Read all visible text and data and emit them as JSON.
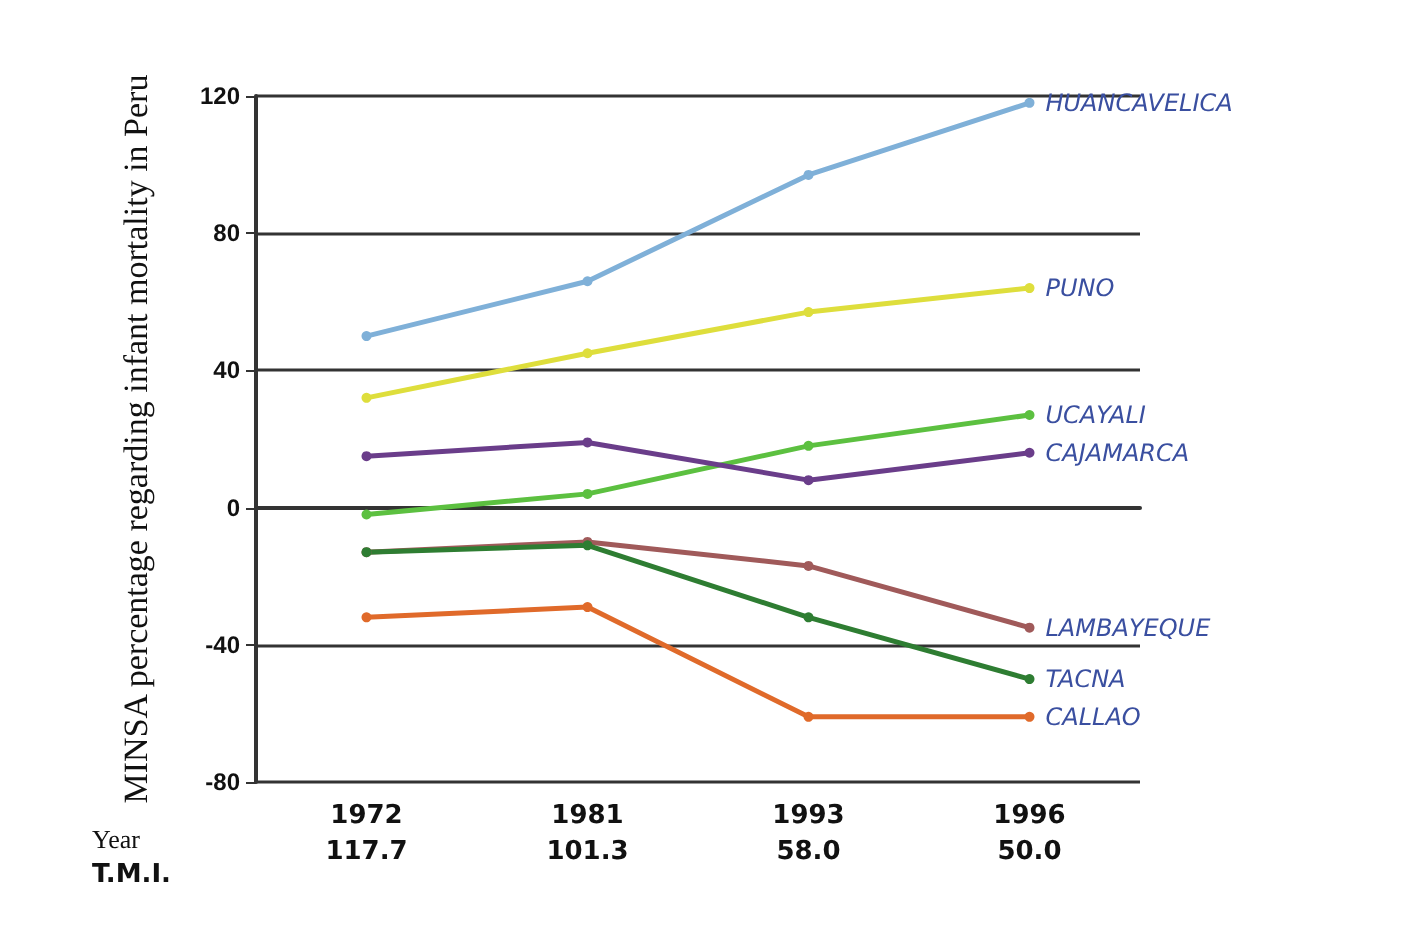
{
  "chart_data": {
    "type": "line",
    "ylabel": "MINSA percentage regarding infant mortality in Peru",
    "categories": [
      "1972",
      "1981",
      "1993",
      "1996"
    ],
    "series": [
      {
        "name": "HUANCAVELICA",
        "color": "#7fb0d8",
        "values": [
          50,
          66,
          97,
          118
        ]
      },
      {
        "name": "PUNO",
        "color": "#dede3c",
        "values": [
          32,
          45,
          57,
          64
        ]
      },
      {
        "name": "UCAYALI",
        "color": "#5cc040",
        "values": [
          -2,
          4,
          18,
          27
        ]
      },
      {
        "name": "CAJAMARCA",
        "color": "#6a3d8a",
        "values": [
          15,
          19,
          8,
          16
        ]
      },
      {
        "name": "LAMBAYEQUE",
        "color": "#a05a5a",
        "values": [
          -13,
          -10,
          -17,
          -35
        ]
      },
      {
        "name": "TACNA",
        "color": "#2e7d32",
        "values": [
          -13,
          -11,
          -32,
          -50
        ]
      },
      {
        "name": "CALLAO",
        "color": "#e06a2a",
        "values": [
          -32,
          -29,
          -61,
          -61
        ]
      }
    ],
    "annotations": [
      "Year",
      "T.M.I.",
      "117.7",
      "101.3",
      "58.0",
      "50.0"
    ],
    "ylim": [
      -80,
      120
    ],
    "yticks": [
      -80,
      -40,
      0,
      40,
      80,
      120
    ],
    "grid": "y",
    "legend": false,
    "marker": "circle",
    "line_style": "solid"
  }
}
